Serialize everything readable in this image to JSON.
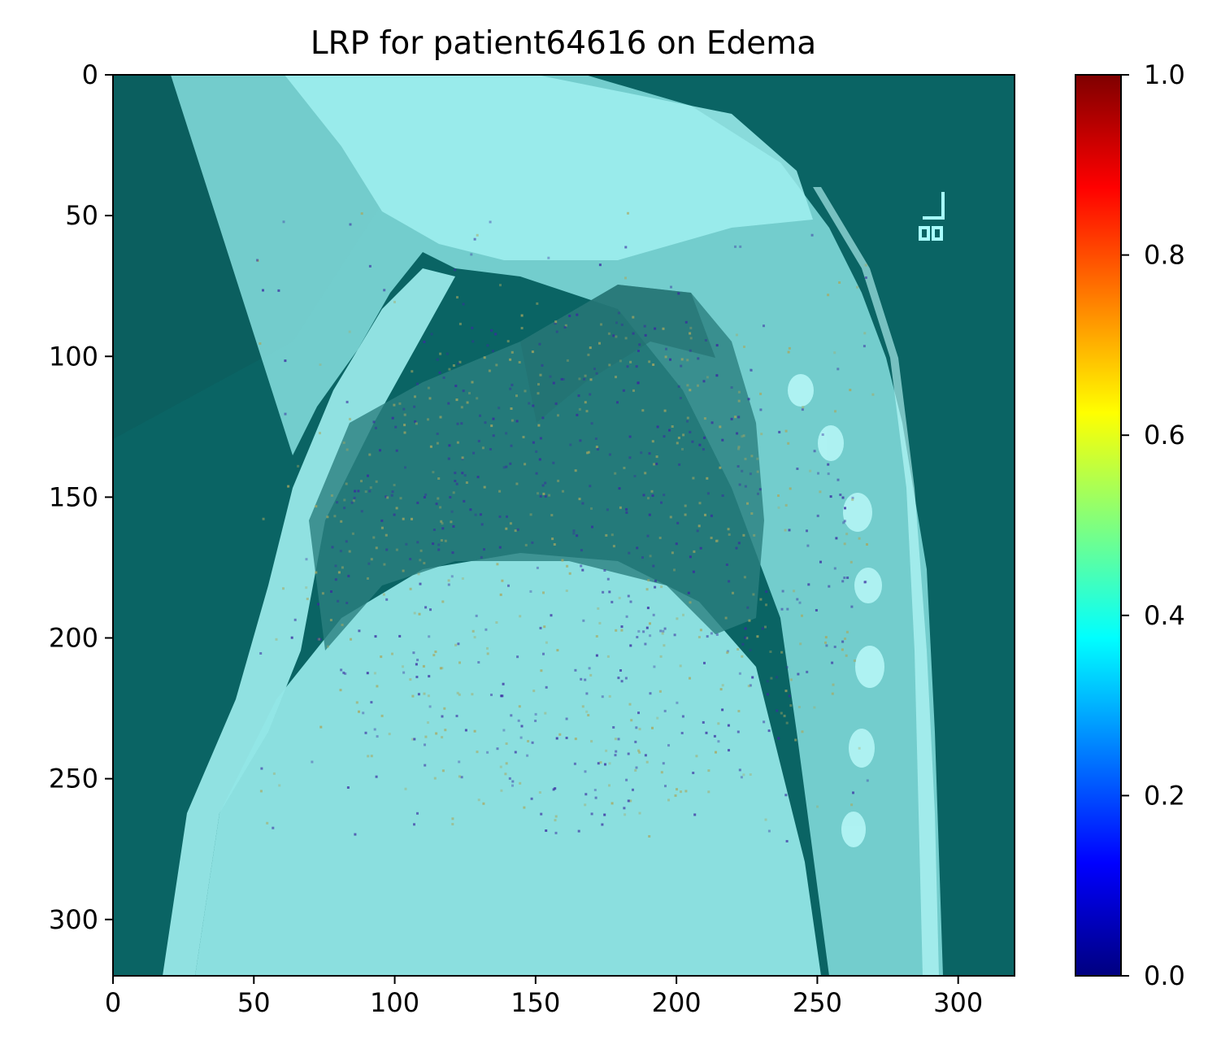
{
  "chart_data": {
    "type": "heatmap",
    "title": "LRP for patient64616 on Edema",
    "xlabel": "",
    "ylabel": "",
    "xlim": [
      0,
      320
    ],
    "ylim": [
      320,
      0
    ],
    "x_ticks": [
      0,
      50,
      100,
      150,
      200,
      250,
      300
    ],
    "y_ticks": [
      0,
      50,
      100,
      150,
      200,
      250,
      300
    ],
    "image_content": "lateral chest x-ray overlaid with LRP relevance heatmap",
    "colormap": "jet",
    "colorbar": {
      "range": [
        0.0,
        1.0
      ],
      "ticks": [
        "0.0",
        "0.2",
        "0.4",
        "0.6",
        "0.8",
        "1.0"
      ],
      "colors": [
        "#00007f",
        "#0000ff",
        "#007fff",
        "#00ffff",
        "#7fff7f",
        "#ffff00",
        "#ff7f00",
        "#ff0000",
        "#7f0000"
      ]
    },
    "overlay_colors": {
      "background": "#0a6464",
      "tissue": "#8ee8e8",
      "relevance_low": "#3a2aa0",
      "relevance_mid": "#a8a860"
    },
    "grid": false
  }
}
